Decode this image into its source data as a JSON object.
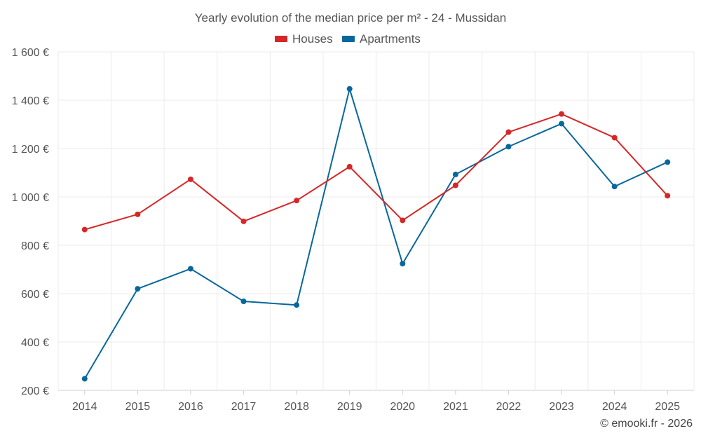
{
  "chart_data": {
    "type": "line",
    "title": "Yearly evolution of the median price per m² - 24 - Mussidan",
    "categories": [
      "2014",
      "2015",
      "2016",
      "2017",
      "2018",
      "2019",
      "2020",
      "2021",
      "2022",
      "2023",
      "2024",
      "2025"
    ],
    "series": [
      {
        "name": "Houses",
        "color": "#d62728",
        "values": [
          865,
          928,
          1073,
          899,
          985,
          1125,
          903,
          1048,
          1268,
          1343,
          1245,
          1005
        ]
      },
      {
        "name": "Apartments",
        "color": "#08679c",
        "values": [
          248,
          620,
          703,
          568,
          553,
          1447,
          724,
          1093,
          1208,
          1303,
          1043,
          1144
        ]
      }
    ],
    "ylim": [
      200,
      1600
    ],
    "yticks": [
      200,
      400,
      600,
      800,
      1000,
      1200,
      1400,
      1600
    ],
    "ytick_labels": [
      "200 €",
      "400 €",
      "600 €",
      "800 €",
      "1 000 €",
      "1 200 €",
      "1 400 €",
      "1 600 €"
    ],
    "xlabel": "",
    "ylabel": "",
    "grid": true,
    "legend_position": "top-center"
  },
  "credit": "© emooki.fr - 2026"
}
